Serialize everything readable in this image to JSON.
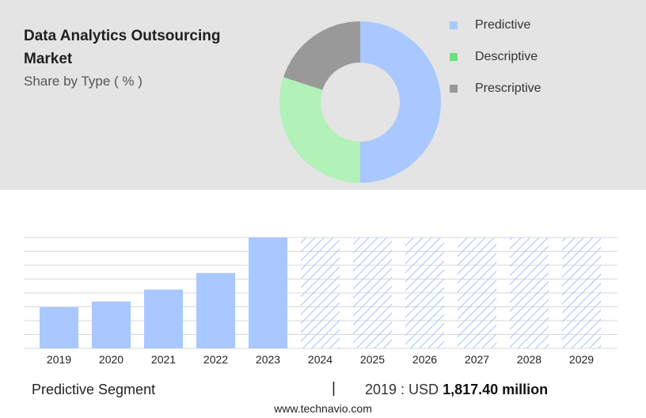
{
  "header": {
    "title": "Data Analytics Outsourcing Market",
    "subtitle": "Share by Type ( % )"
  },
  "colors": {
    "panel_background": "#e4e4e4",
    "predictive": "#a8c8ff",
    "descriptive": "#b2f1b8",
    "prescriptive": "#999999",
    "legend_predictive": "#a8c8ff",
    "legend_descriptive": "#6ee07e",
    "legend_prescriptive": "#999999",
    "forecast_hatch": "#a8c8ff"
  },
  "chart_data": [
    {
      "type": "pie",
      "style": "donut",
      "title": "",
      "legend_position": "right",
      "series": [
        {
          "name": "Predictive",
          "value": 50,
          "color": "#a8c8ff"
        },
        {
          "name": "Descriptive",
          "value": 30,
          "color": "#b2f1b8"
        },
        {
          "name": "Prescriptive",
          "value": 20,
          "color": "#999999"
        }
      ]
    },
    {
      "type": "bar",
      "title": "",
      "xlabel": "",
      "ylabel": "",
      "categories": [
        "2019",
        "2020",
        "2021",
        "2022",
        "2023",
        "2024",
        "2025",
        "2026",
        "2027",
        "2028",
        "2029"
      ],
      "values": [
        1817.4,
        2070,
        2600,
        3330,
        4900,
        4900,
        4900,
        4900,
        4900,
        4900,
        4900
      ],
      "forecast": [
        false,
        false,
        false,
        false,
        false,
        true,
        true,
        true,
        true,
        true,
        true
      ],
      "ylim": [
        0,
        4900
      ],
      "grid": true
    }
  ],
  "footer": {
    "segment_label": "Predictive Segment",
    "separator": "|",
    "value_prefix": "2019 : USD",
    "value_amount": "1,817.40 million",
    "source": "www.technavio.com"
  }
}
